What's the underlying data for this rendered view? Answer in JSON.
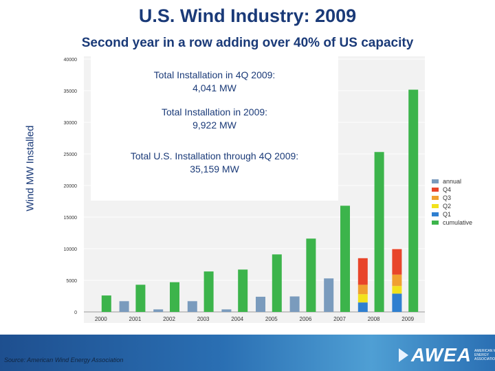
{
  "slide": {
    "title": "U.S. Wind Industry: 2009",
    "subtitle": "Second year in a row adding over 40% of US capacity"
  },
  "annotations": [
    {
      "line1": "Total Installation in 4Q 2009:",
      "line2": "4,041 MW"
    },
    {
      "line1": "Total Installation in 2009:",
      "line2": "9,922 MW"
    },
    {
      "line1": "Total U.S. Installation through 4Q 2009:",
      "line2": "35,159 MW"
    }
  ],
  "footer": {
    "source": "Source: American Wind Energy Association",
    "logo_text": "AWEA",
    "logo_tagline": "AMERICAN WIND ENERGY ASSOCIATION"
  },
  "colors": {
    "annual": "#7a9bbd",
    "Q4": "#e8452a",
    "Q3": "#f0a030",
    "Q2": "#f2e21c",
    "Q1": "#2f7fd0",
    "cumulative": "#3cb44b",
    "title": "#1a3a78"
  },
  "chart_data": {
    "type": "bar",
    "ylabel": "Wind MW Installed",
    "xlabel": "",
    "ylim": [
      0,
      40000
    ],
    "yticks": [
      0,
      5000,
      10000,
      15000,
      20000,
      25000,
      30000,
      35000,
      40000
    ],
    "categories": [
      "2000",
      "2001",
      "2002",
      "2003",
      "2004",
      "2005",
      "2006",
      "2007",
      "2008",
      "2009"
    ],
    "legend_position": "right",
    "legend": [
      "annual",
      "Q4",
      "Q3",
      "Q2",
      "Q1",
      "cumulative"
    ],
    "series": [
      {
        "name": "annual",
        "values": [
          null,
          1700,
          400,
          1700,
          400,
          2400,
          2450,
          5300,
          null,
          null
        ]
      },
      {
        "name": "Q1",
        "values": [
          null,
          null,
          null,
          null,
          null,
          null,
          null,
          null,
          1500,
          2900
        ]
      },
      {
        "name": "Q2",
        "values": [
          null,
          null,
          null,
          null,
          null,
          null,
          null,
          null,
          1300,
          1200
        ]
      },
      {
        "name": "Q3",
        "values": [
          null,
          null,
          null,
          null,
          null,
          null,
          null,
          null,
          1500,
          1800
        ]
      },
      {
        "name": "Q4",
        "values": [
          null,
          null,
          null,
          null,
          null,
          null,
          null,
          null,
          4200,
          4041
        ]
      },
      {
        "name": "cumulative",
        "values": [
          2600,
          4300,
          4700,
          6400,
          6700,
          9100,
          11600,
          16800,
          25300,
          35159
        ]
      }
    ]
  }
}
